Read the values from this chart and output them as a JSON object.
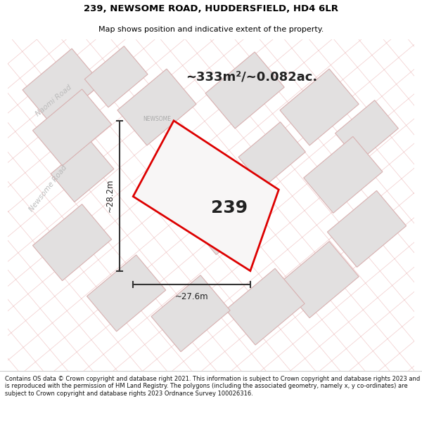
{
  "title_line1": "239, NEWSOME ROAD, HUDDERSFIELD, HD4 6LR",
  "title_line2": "Map shows position and indicative extent of the property.",
  "area_text": "~333m²/~0.082ac.",
  "plot_number": "239",
  "dim_width": "~27.6m",
  "dim_height": "~28.2m",
  "road_label_naomi": "Naomi Road",
  "road_label_newsome": "Newsome Road",
  "road_label_newsome_short": "NEWSOME",
  "footer_text": "Contains OS data © Crown copyright and database right 2021. This information is subject to Crown copyright and database rights 2023 and is reproduced with the permission of HM Land Registry. The polygons (including the associated geometry, namely x, y co-ordinates) are subject to Crown copyright and database rights 2023 Ordnance Survey 100026316.",
  "bg_color": "#f2f0f0",
  "map_bg": "#f2f0f0",
  "plot_fill": "#f0eeee",
  "plot_edge": "#dd0000",
  "neighbor_fill": "#e2e0e0",
  "neighbor_edge": "#d8b0b0",
  "road_line_color": "#e8a8a8",
  "footer_bg": "#ffffff",
  "title_bg": "#ffffff"
}
